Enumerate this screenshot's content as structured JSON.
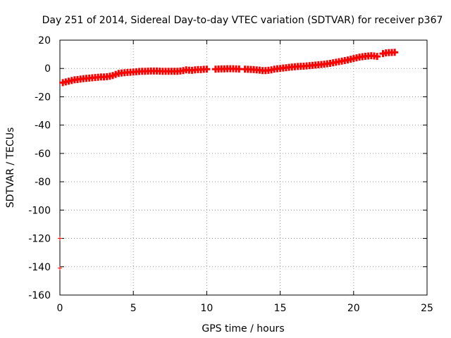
{
  "chart_data": {
    "type": "scatter",
    "title": "Day 251 of 2014, Sidereal Day-to-day VTEC variation (SDTVAR) for receiver p367",
    "xlabel": "GPS time / hours",
    "ylabel": "SDTVAR / TECUs",
    "xlim": [
      0,
      25
    ],
    "ylim": [
      -160,
      20
    ],
    "xticks": [
      0,
      5,
      10,
      15,
      20,
      25
    ],
    "yticks": [
      20,
      0,
      -20,
      -40,
      -60,
      -80,
      -100,
      -120,
      -140,
      -160
    ],
    "grid": true,
    "marker": "plus",
    "series": [
      {
        "name": "SDTVAR",
        "color": "#ff0000",
        "x": [
          0.2,
          0.4,
          0.6,
          0.8,
          1.0,
          1.2,
          1.4,
          1.6,
          1.8,
          2.0,
          2.2,
          2.4,
          2.6,
          2.8,
          3.0,
          3.2,
          3.4,
          3.6,
          3.8,
          4.0,
          4.2,
          4.4,
          4.6,
          4.8,
          5.0,
          5.2,
          5.4,
          5.6,
          5.8,
          6.0,
          6.2,
          6.4,
          6.6,
          6.8,
          7.0,
          7.2,
          7.4,
          7.6,
          7.8,
          8.0,
          8.2,
          8.4,
          8.6,
          8.8,
          9.0,
          9.2,
          9.4,
          9.6,
          9.8,
          10.0,
          10.6,
          10.8,
          11.0,
          11.2,
          11.4,
          11.6,
          11.8,
          12.0,
          12.2,
          12.6,
          12.8,
          13.0,
          13.2,
          13.4,
          13.6,
          13.8,
          14.0,
          14.2,
          14.4,
          14.6,
          14.8,
          15.0,
          15.2,
          15.4,
          15.6,
          15.8,
          16.0,
          16.2,
          16.4,
          16.6,
          16.8,
          17.0,
          17.2,
          17.4,
          17.6,
          17.8,
          18.0,
          18.2,
          18.4,
          18.6,
          18.8,
          19.0,
          19.2,
          19.4,
          19.6,
          19.8,
          20.0,
          20.2,
          20.4,
          20.6,
          20.8,
          21.0,
          21.2,
          21.4,
          21.6,
          22.0,
          22.2,
          22.4,
          22.6,
          22.8,
          0.0,
          0.0
        ],
        "y": [
          -10,
          -9.5,
          -9,
          -8.5,
          -8,
          -7.8,
          -7.5,
          -7.2,
          -7,
          -6.8,
          -6.6,
          -6.4,
          -6.2,
          -6,
          -6,
          -5.8,
          -5.5,
          -5,
          -4.2,
          -3.5,
          -3.2,
          -3,
          -2.8,
          -2.7,
          -2.5,
          -2.3,
          -2.1,
          -2,
          -2,
          -1.9,
          -1.8,
          -1.8,
          -1.8,
          -1.9,
          -2,
          -2,
          -2,
          -2,
          -2,
          -2,
          -1.8,
          -1.5,
          -1,
          -1.2,
          -1.3,
          -1,
          -0.8,
          -0.8,
          -0.6,
          -0.5,
          -0.5,
          -0.4,
          -0.3,
          -0.3,
          -0.2,
          -0.2,
          -0.2,
          -0.3,
          -0.4,
          -0.5,
          -0.6,
          -0.7,
          -0.8,
          -1,
          -1.2,
          -1.5,
          -1.5,
          -1.3,
          -1,
          -0.5,
          -0.2,
          0,
          0.3,
          0.5,
          0.8,
          1,
          1.2,
          1.4,
          1.5,
          1.6,
          1.8,
          2,
          2.2,
          2.4,
          2.6,
          2.8,
          3,
          3.3,
          3.6,
          4,
          4.4,
          4.8,
          5.2,
          5.6,
          6,
          6.5,
          7,
          7.5,
          8,
          8.3,
          8.6,
          8.8,
          9,
          8.8,
          8.5,
          10.5,
          11,
          11.2,
          11.3,
          11.4,
          -120,
          -141
        ]
      }
    ]
  }
}
